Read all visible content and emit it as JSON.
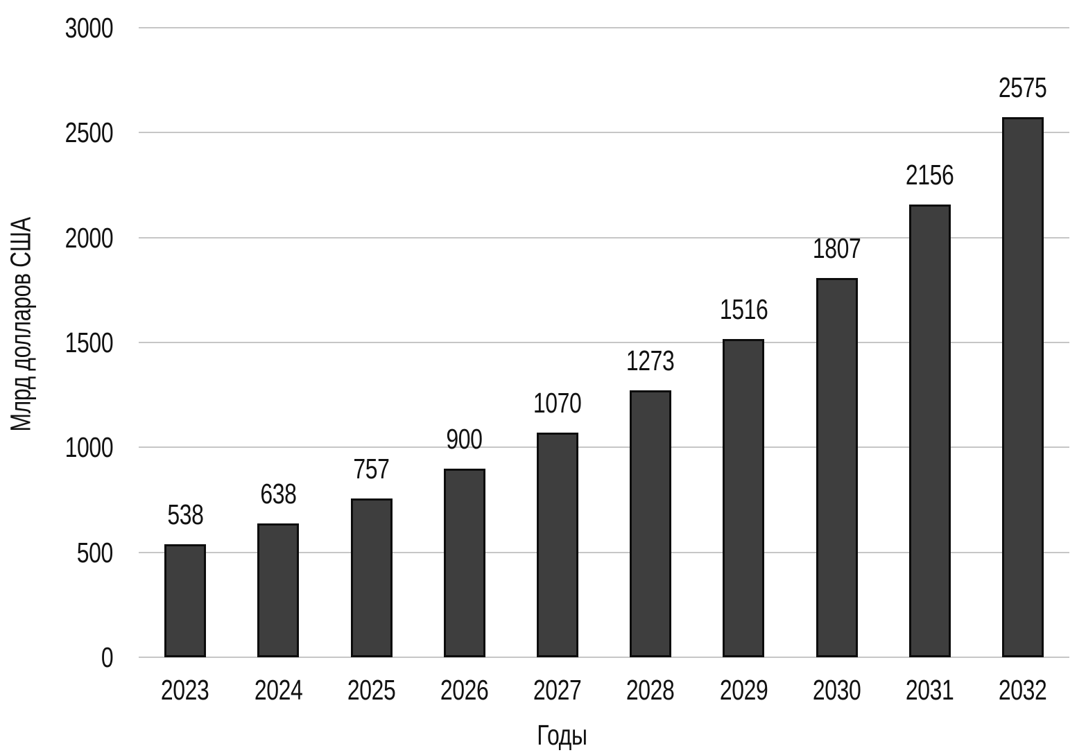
{
  "chart_data": {
    "type": "bar",
    "categories": [
      "2023",
      "2024",
      "2025",
      "2026",
      "2027",
      "2028",
      "2029",
      "2030",
      "2031",
      "2032"
    ],
    "values": [
      538,
      638,
      757,
      900,
      1070,
      1273,
      1516,
      1807,
      2156,
      2575
    ],
    "title": "",
    "xlabel": "Годы",
    "ylabel": "Млрд долларов США",
    "ylim": [
      0,
      3000
    ],
    "yticks": [
      0,
      500,
      1000,
      1500,
      2000,
      2500,
      3000
    ],
    "grid": true,
    "legend": "none",
    "bar_color": "#3e3e3e",
    "bar_border_color": "#0d0d0d",
    "gridline_color": "#c6c6c6",
    "text_color": "#111111",
    "background_color": "#ffffff"
  }
}
